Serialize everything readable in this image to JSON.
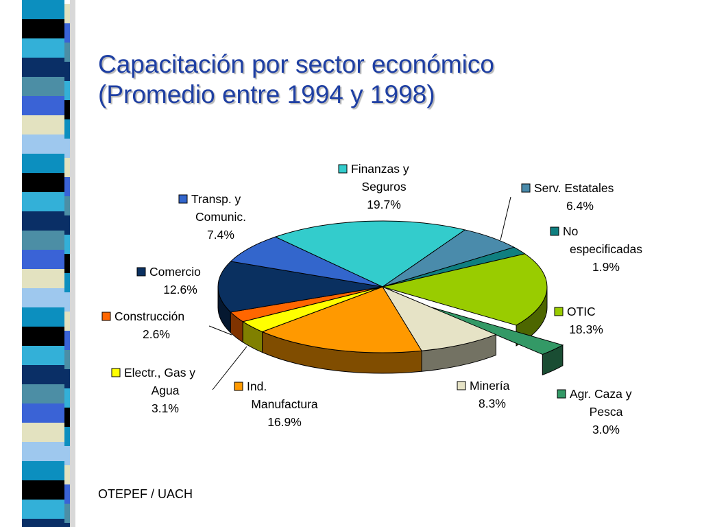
{
  "title_lines": [
    "Capacitación por sector económico",
    "(Promedio entre 1994 y 1998)"
  ],
  "source": "OTEPEF / UACH",
  "colors": {
    "title": "#1e3fa3",
    "stripe": [
      "#3a63d6",
      "#0c8fbf",
      "#0a2f66",
      "#e3e2c0",
      "#000000",
      "#4c8ea5",
      "#9ec8ee",
      "#33b0d8"
    ]
  },
  "chart_data": {
    "type": "pie",
    "style": "3d-exploded",
    "slices": [
      {
        "name": "Finanzas y Seguros",
        "label_lines": [
          "Finanzas y",
          "Seguros"
        ],
        "value": 19.7,
        "value_label": "19.7%",
        "color": "#33cccc"
      },
      {
        "name": "Serv. Estatales",
        "label_lines": [
          "Serv. Estatales"
        ],
        "value": 6.4,
        "value_label": "6.4%",
        "color": "#4a8bab"
      },
      {
        "name": "No especificadas",
        "label_lines": [
          "No",
          "especificadas"
        ],
        "value": 1.9,
        "value_label": "1.9%",
        "color": "#0f7f80"
      },
      {
        "name": "OTIC",
        "label_lines": [
          "OTIC"
        ],
        "value": 18.3,
        "value_label": "18.3%",
        "color": "#99cc00"
      },
      {
        "name": "Agr. Caza y Pesca",
        "label_lines": [
          "Agr. Caza y",
          "Pesca"
        ],
        "value": 3.0,
        "value_label": "3.0%",
        "color": "#339966",
        "exploded": true
      },
      {
        "name": "Minería",
        "label_lines": [
          "Minería"
        ],
        "value": 8.3,
        "value_label": "8.3%",
        "color": "#e6e3c6"
      },
      {
        "name": "Ind. Manufactura",
        "label_lines": [
          "Ind.",
          "Manufactura"
        ],
        "value": 16.9,
        "value_label": "16.9%",
        "color": "#ff9900"
      },
      {
        "name": "Electr., Gas y Agua",
        "label_lines": [
          "Electr., Gas y",
          "Agua"
        ],
        "value": 3.1,
        "value_label": "3.1%",
        "color": "#ffff00"
      },
      {
        "name": "Construcción",
        "label_lines": [
          "Construcción"
        ],
        "value": 2.6,
        "value_label": "2.6%",
        "color": "#ff6600"
      },
      {
        "name": "Comercio",
        "label_lines": [
          "Comercio"
        ],
        "value": 12.6,
        "value_label": "12.6%",
        "color": "#0a3060"
      },
      {
        "name": "Transp. y Comunic.",
        "label_lines": [
          "Transp. y",
          "Comunic."
        ],
        "value": 7.4,
        "value_label": "7.4%",
        "color": "#3366cc"
      }
    ]
  }
}
